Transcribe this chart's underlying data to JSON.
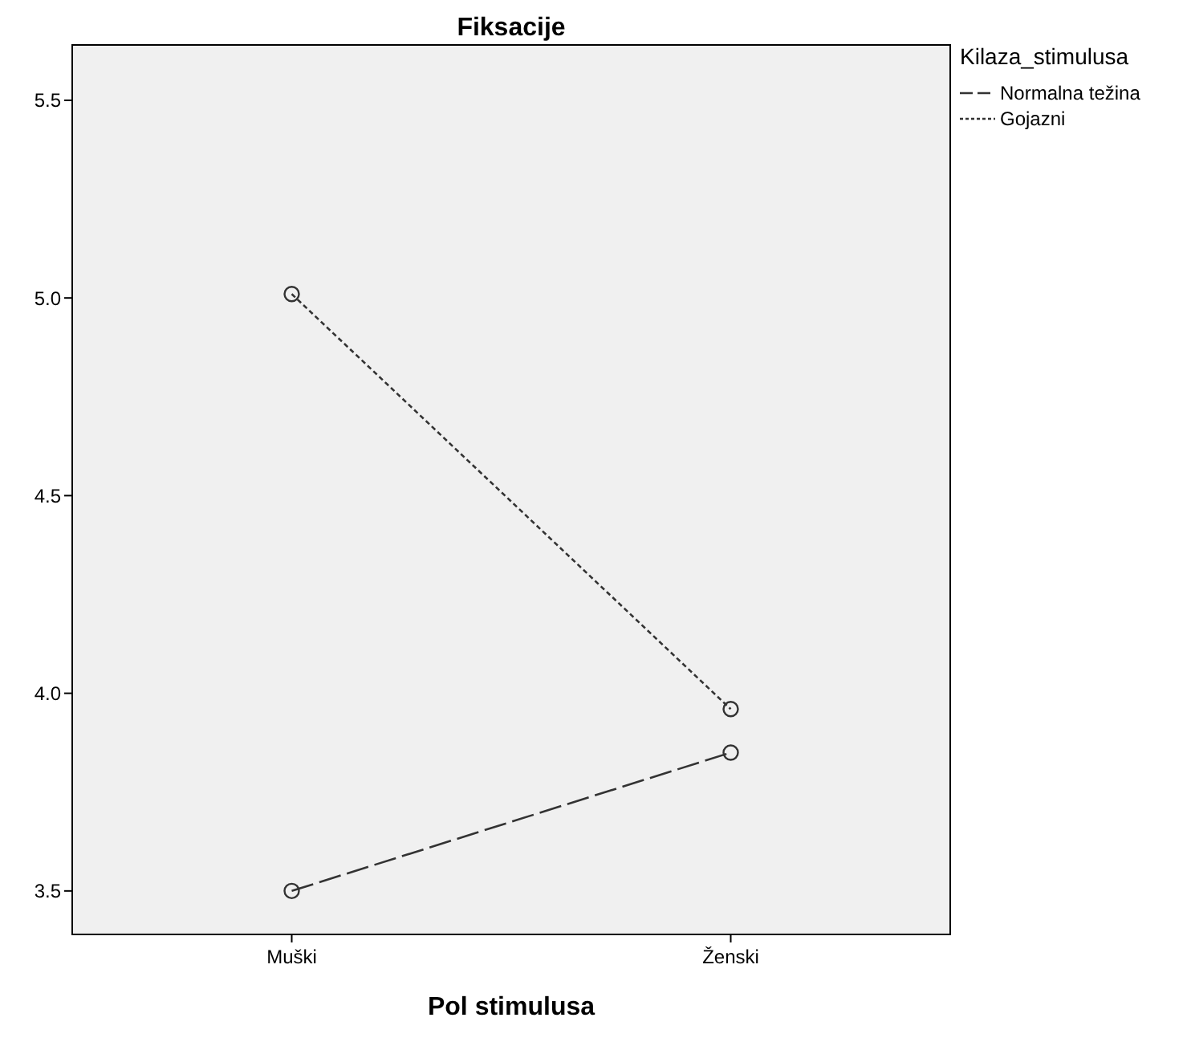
{
  "chart_data": {
    "type": "line",
    "title": "Fiksacije",
    "xlabel": "Pol stimulusa",
    "legend_title": "Kilaza_stimulusa",
    "categories": [
      "Muški",
      "Ženski"
    ],
    "series": [
      {
        "name": "Normalna težina",
        "color": "#333333",
        "values": [
          3.5,
          3.85
        ],
        "line_style": "dashed"
      },
      {
        "name": "Gojazni",
        "color": "#333333",
        "values": [
          5.01,
          3.96
        ],
        "line_style": "dotted"
      }
    ],
    "ylim": [
      3.39,
      5.64
    ],
    "yticks": [
      {
        "value": 3.5,
        "label": "3.5"
      },
      {
        "value": 4.0,
        "label": "4.0"
      },
      {
        "value": 4.5,
        "label": "4.5"
      },
      {
        "value": 5.0,
        "label": "5.0"
      },
      {
        "value": 5.5,
        "label": "5.5"
      }
    ],
    "marker": "circle",
    "legend": "right",
    "grid": false
  }
}
